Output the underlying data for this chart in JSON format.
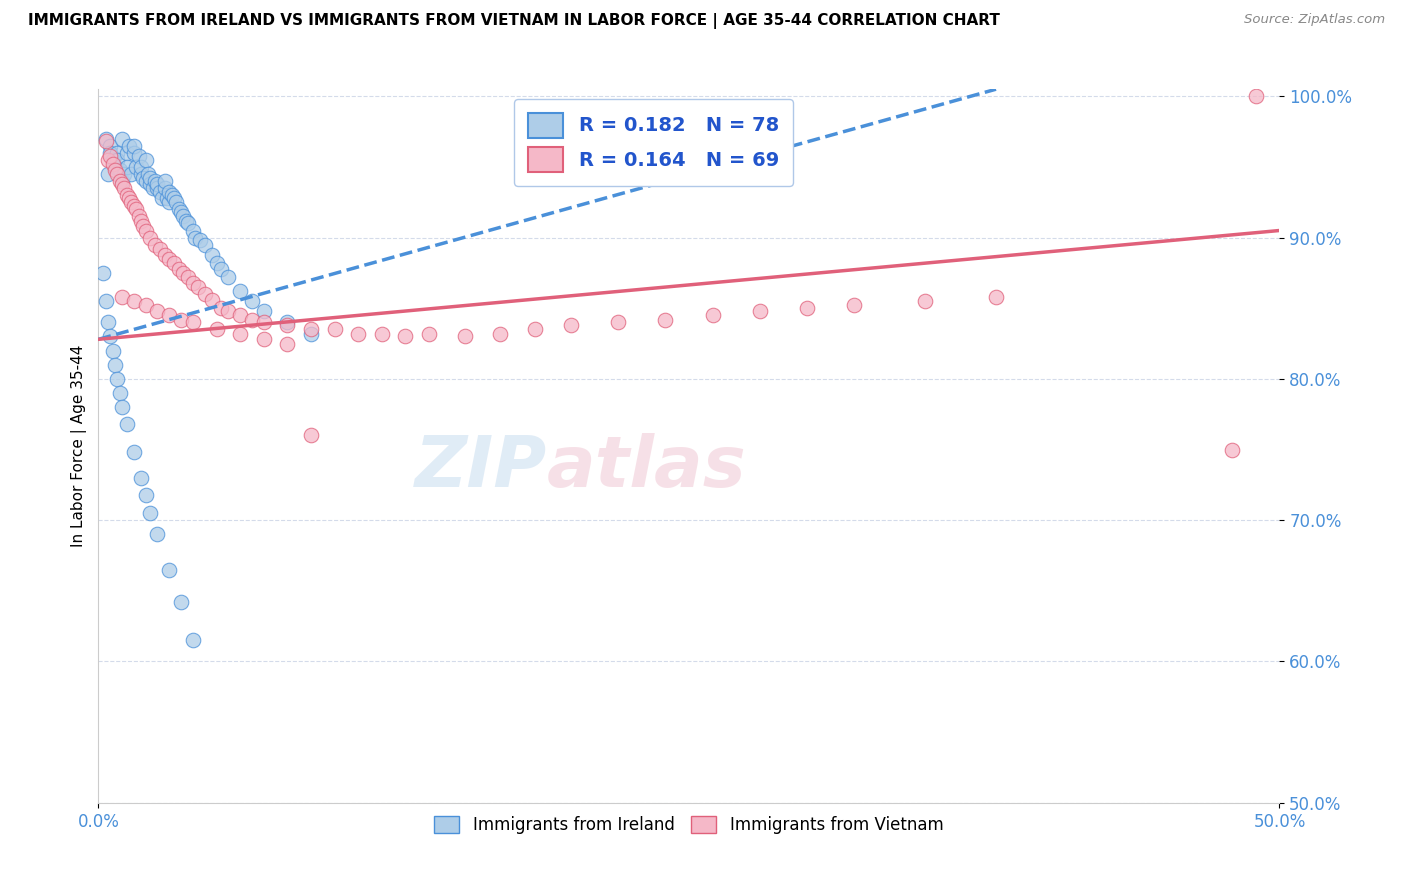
{
  "title": "IMMIGRANTS FROM IRELAND VS IMMIGRANTS FROM VIETNAM IN LABOR FORCE | AGE 35-44 CORRELATION CHART",
  "source": "Source: ZipAtlas.com",
  "ylabel": "In Labor Force | Age 35-44",
  "legend_labels": [
    "Immigrants from Ireland",
    "Immigrants from Vietnam"
  ],
  "R_ireland": 0.182,
  "N_ireland": 78,
  "R_vietnam": 0.164,
  "N_vietnam": 69,
  "ireland_color": "#aecde8",
  "vietnam_color": "#f5b8c8",
  "ireland_line_color": "#4a90d9",
  "vietnam_line_color": "#e0607a",
  "xlim": [
    0.0,
    0.5
  ],
  "ylim": [
    0.5,
    1.005
  ],
  "ireland_line_x": [
    0.0,
    0.38
  ],
  "ireland_line_y": [
    0.828,
    1.005
  ],
  "vietnam_line_x": [
    0.0,
    0.5
  ],
  "vietnam_line_y": [
    0.828,
    0.905
  ],
  "ireland_scatter": {
    "x": [
      0.003,
      0.004,
      0.005,
      0.005,
      0.006,
      0.007,
      0.008,
      0.008,
      0.009,
      0.01,
      0.01,
      0.011,
      0.012,
      0.012,
      0.013,
      0.014,
      0.015,
      0.015,
      0.016,
      0.017,
      0.018,
      0.018,
      0.019,
      0.02,
      0.02,
      0.021,
      0.022,
      0.022,
      0.023,
      0.024,
      0.025,
      0.025,
      0.026,
      0.027,
      0.028,
      0.028,
      0.029,
      0.03,
      0.03,
      0.031,
      0.032,
      0.033,
      0.034,
      0.035,
      0.036,
      0.037,
      0.038,
      0.04,
      0.041,
      0.043,
      0.045,
      0.048,
      0.05,
      0.052,
      0.055,
      0.06,
      0.065,
      0.07,
      0.08,
      0.09,
      0.002,
      0.003,
      0.004,
      0.005,
      0.006,
      0.007,
      0.008,
      0.009,
      0.01,
      0.012,
      0.015,
      0.018,
      0.02,
      0.022,
      0.025,
      0.03,
      0.035,
      0.04
    ],
    "y": [
      0.97,
      0.945,
      0.965,
      0.96,
      0.955,
      0.95,
      0.96,
      0.955,
      0.948,
      0.94,
      0.97,
      0.945,
      0.96,
      0.95,
      0.965,
      0.945,
      0.96,
      0.965,
      0.95,
      0.958,
      0.945,
      0.95,
      0.942,
      0.94,
      0.955,
      0.945,
      0.938,
      0.942,
      0.935,
      0.94,
      0.935,
      0.938,
      0.932,
      0.928,
      0.935,
      0.94,
      0.928,
      0.925,
      0.932,
      0.93,
      0.928,
      0.925,
      0.92,
      0.918,
      0.915,
      0.912,
      0.91,
      0.905,
      0.9,
      0.898,
      0.895,
      0.888,
      0.882,
      0.878,
      0.872,
      0.862,
      0.855,
      0.848,
      0.84,
      0.832,
      0.875,
      0.855,
      0.84,
      0.83,
      0.82,
      0.81,
      0.8,
      0.79,
      0.78,
      0.768,
      0.748,
      0.73,
      0.718,
      0.705,
      0.69,
      0.665,
      0.642,
      0.615
    ]
  },
  "vietnam_scatter": {
    "x": [
      0.003,
      0.004,
      0.005,
      0.006,
      0.007,
      0.008,
      0.009,
      0.01,
      0.011,
      0.012,
      0.013,
      0.014,
      0.015,
      0.016,
      0.017,
      0.018,
      0.019,
      0.02,
      0.022,
      0.024,
      0.026,
      0.028,
      0.03,
      0.032,
      0.034,
      0.036,
      0.038,
      0.04,
      0.042,
      0.045,
      0.048,
      0.052,
      0.055,
      0.06,
      0.065,
      0.07,
      0.08,
      0.09,
      0.1,
      0.11,
      0.12,
      0.13,
      0.14,
      0.155,
      0.17,
      0.185,
      0.2,
      0.22,
      0.24,
      0.26,
      0.28,
      0.3,
      0.32,
      0.35,
      0.38,
      0.01,
      0.015,
      0.02,
      0.025,
      0.03,
      0.035,
      0.04,
      0.05,
      0.06,
      0.07,
      0.08,
      0.09,
      0.48,
      0.49
    ],
    "y": [
      0.968,
      0.955,
      0.958,
      0.952,
      0.948,
      0.945,
      0.94,
      0.938,
      0.935,
      0.93,
      0.928,
      0.925,
      0.922,
      0.92,
      0.915,
      0.912,
      0.908,
      0.905,
      0.9,
      0.895,
      0.892,
      0.888,
      0.885,
      0.882,
      0.878,
      0.875,
      0.872,
      0.868,
      0.865,
      0.86,
      0.856,
      0.85,
      0.848,
      0.845,
      0.842,
      0.84,
      0.838,
      0.835,
      0.835,
      0.832,
      0.832,
      0.83,
      0.832,
      0.83,
      0.832,
      0.835,
      0.838,
      0.84,
      0.842,
      0.845,
      0.848,
      0.85,
      0.852,
      0.855,
      0.858,
      0.858,
      0.855,
      0.852,
      0.848,
      0.845,
      0.842,
      0.84,
      0.835,
      0.832,
      0.828,
      0.825,
      0.76,
      0.75,
      1.0
    ]
  },
  "watermark_color": "#c8ddf0",
  "watermark_color2": "#f0c8d4"
}
